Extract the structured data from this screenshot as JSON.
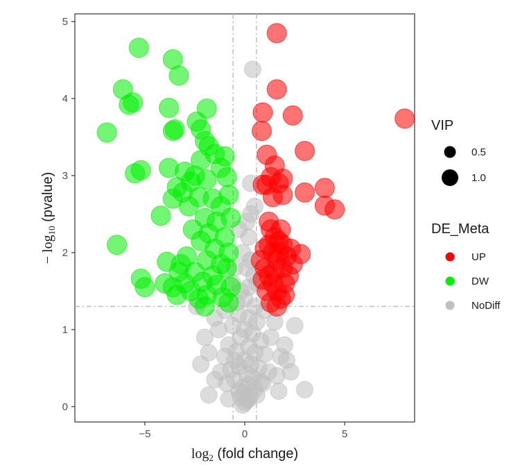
{
  "chart_data": {
    "type": "scatter",
    "title": "",
    "xlabel": {
      "prefix": "log",
      "sub": "2",
      "rest": " (fold change)"
    },
    "ylabel": {
      "prefix": "− log",
      "sub": "10",
      "rest": " (pvalue)"
    },
    "xlim": [
      -8.5,
      8.5
    ],
    "ylim": [
      -0.2,
      5.1
    ],
    "x_ticks": [
      -5,
      0,
      5
    ],
    "x_tick_labels": [
      "−5",
      "0",
      "5"
    ],
    "y_ticks": [
      0,
      1,
      2,
      3,
      4,
      5
    ],
    "y_tick_labels": [
      "0",
      "1",
      "2",
      "3",
      "4",
      "5"
    ],
    "grid": false,
    "reference_lines": {
      "x": [
        -0.585,
        0.585
      ],
      "y": 1.301,
      "style": "dashed",
      "color": "#bdbdbd"
    },
    "legend": {
      "placement": "right",
      "size_title": "VIP",
      "size_entries": [
        {
          "label": "0.5",
          "vip": 0.5
        },
        {
          "label": "1.0",
          "vip": 1.0
        }
      ],
      "color_title": "DE_Meta",
      "color_entries": [
        {
          "label": "UP",
          "color": "#ff0000"
        },
        {
          "label": "DW",
          "color": "#00ee00"
        },
        {
          "label": "NoDiff",
          "color": "#c0c0c0"
        }
      ]
    },
    "series": [
      {
        "name": "UP",
        "color": "#ff0000",
        "points": [
          [
            1.6,
            4.85
          ],
          [
            1.6,
            4.12
          ],
          [
            0.9,
            3.82
          ],
          [
            2.4,
            3.78
          ],
          [
            8,
            3.74
          ],
          [
            0.85,
            3.58
          ],
          [
            3,
            3.32
          ],
          [
            1.1,
            3.27
          ],
          [
            1.5,
            3.13
          ],
          [
            1.3,
            2.98
          ],
          [
            1.9,
            2.96
          ],
          [
            4,
            2.84
          ],
          [
            1.1,
            2.88
          ],
          [
            1.7,
            2.9
          ],
          [
            3,
            2.78
          ],
          [
            4.5,
            2.56
          ],
          [
            1.4,
            2.72
          ],
          [
            1.9,
            2.75
          ],
          [
            4,
            2.61
          ],
          [
            0.9,
            2.88
          ],
          [
            1.2,
            2.4
          ],
          [
            1.3,
            2.3
          ],
          [
            1.5,
            2.2
          ],
          [
            1.7,
            2.15
          ],
          [
            1.9,
            2.1
          ],
          [
            1.8,
            2.3
          ],
          [
            1.4,
            2.0
          ],
          [
            1.6,
            1.9
          ],
          [
            2.1,
            1.95
          ],
          [
            2.3,
            2.05
          ],
          [
            2.8,
            1.98
          ],
          [
            1.0,
            1.8
          ],
          [
            1.2,
            1.7
          ],
          [
            1.4,
            1.6
          ],
          [
            1.6,
            1.5
          ],
          [
            1.8,
            1.4
          ],
          [
            2.0,
            1.6
          ],
          [
            1.5,
            1.75
          ],
          [
            1.1,
            1.5
          ],
          [
            1.3,
            1.35
          ],
          [
            1.9,
            1.8
          ],
          [
            2.2,
            1.7
          ],
          [
            0.8,
            1.9
          ],
          [
            0.9,
            1.65
          ],
          [
            1.6,
            1.3
          ],
          [
            2.0,
            1.45
          ],
          [
            1.7,
            2.0
          ],
          [
            1.2,
            2.1
          ],
          [
            2.4,
            1.85
          ],
          [
            1.0,
            2.05
          ]
        ]
      },
      {
        "name": "DW",
        "color": "#00ee00",
        "points": [
          [
            -5.3,
            4.66
          ],
          [
            -3.6,
            4.51
          ],
          [
            -3.3,
            4.3
          ],
          [
            -6.1,
            4.12
          ],
          [
            -5.6,
            3.95
          ],
          [
            -5.8,
            3.92
          ],
          [
            -3.8,
            3.88
          ],
          [
            -1.9,
            3.87
          ],
          [
            -2.4,
            3.7
          ],
          [
            -3.5,
            3.6
          ],
          [
            -2.2,
            3.6
          ],
          [
            -3.6,
            3.58
          ],
          [
            -6.9,
            3.56
          ],
          [
            -2.0,
            3.45
          ],
          [
            -1.8,
            3.38
          ],
          [
            -1.5,
            3.28
          ],
          [
            -1.0,
            3.25
          ],
          [
            -2.2,
            3.2
          ],
          [
            -1.2,
            3.1
          ],
          [
            -3.8,
            3.1
          ],
          [
            -5.2,
            3.07
          ],
          [
            -5.5,
            3.03
          ],
          [
            -3.0,
            3.05
          ],
          [
            -2.5,
            3.0
          ],
          [
            -0.9,
            2.98
          ],
          [
            -1.9,
            2.95
          ],
          [
            -2.7,
            2.92
          ],
          [
            -3.4,
            2.85
          ],
          [
            -3.1,
            2.78
          ],
          [
            -2.3,
            2.72
          ],
          [
            -1.6,
            2.7
          ],
          [
            -0.8,
            2.75
          ],
          [
            -3.6,
            2.7
          ],
          [
            -2.8,
            2.6
          ],
          [
            -1.2,
            2.6
          ],
          [
            -4.2,
            2.48
          ],
          [
            -2.0,
            2.45
          ],
          [
            -1.4,
            2.4
          ],
          [
            -0.7,
            2.45
          ],
          [
            -2.6,
            2.3
          ],
          [
            -1.8,
            2.25
          ],
          [
            -1.0,
            2.2
          ],
          [
            -2.2,
            2.15
          ],
          [
            -1.5,
            2.05
          ],
          [
            -0.8,
            2.0
          ],
          [
            -6.4,
            2.1
          ],
          [
            -2.9,
            1.95
          ],
          [
            -1.9,
            1.9
          ],
          [
            -1.2,
            1.85
          ],
          [
            -0.9,
            1.8
          ],
          [
            -3.9,
            1.88
          ],
          [
            -3.2,
            1.85
          ],
          [
            -2.5,
            1.75
          ],
          [
            -1.6,
            1.7
          ],
          [
            -2.1,
            1.62
          ],
          [
            -5.2,
            1.66
          ],
          [
            -3.0,
            1.6
          ],
          [
            -1.4,
            1.58
          ],
          [
            -0.7,
            1.55
          ],
          [
            -3.6,
            1.55
          ],
          [
            -5.0,
            1.55
          ],
          [
            -2.7,
            1.5
          ],
          [
            -1.9,
            1.45
          ],
          [
            -1.1,
            1.42
          ],
          [
            -3.4,
            1.45
          ],
          [
            -2.3,
            1.4
          ],
          [
            -0.8,
            1.35
          ],
          [
            -4.0,
            1.6
          ],
          [
            -3.3,
            1.75
          ],
          [
            -2.0,
            1.3
          ]
        ]
      },
      {
        "name": "NoDiff",
        "color": "#c0c0c0",
        "points": [
          [
            0.4,
            4.38
          ],
          [
            0.3,
            2.9
          ],
          [
            0.5,
            2.6
          ],
          [
            0.1,
            2.4
          ],
          [
            0.2,
            2.2
          ],
          [
            -0.1,
            2.0
          ],
          [
            0.3,
            1.9
          ],
          [
            0.45,
            1.7
          ],
          [
            0.2,
            1.55
          ],
          [
            -0.2,
            1.5
          ],
          [
            0.0,
            1.4
          ],
          [
            -0.4,
            1.35
          ],
          [
            0.5,
            1.3
          ],
          [
            -0.3,
            1.2
          ],
          [
            0.2,
            1.15
          ],
          [
            0.6,
            1.1
          ],
          [
            -0.6,
            1.05
          ],
          [
            0.0,
            1.0
          ],
          [
            0.4,
            0.95
          ],
          [
            -0.2,
            0.9
          ],
          [
            0.8,
            0.85
          ],
          [
            -0.8,
            0.8
          ],
          [
            0.2,
            0.78
          ],
          [
            -0.4,
            0.72
          ],
          [
            0.5,
            0.7
          ],
          [
            1.0,
            0.68
          ],
          [
            -1.0,
            0.65
          ],
          [
            0.0,
            0.6
          ],
          [
            0.3,
            0.55
          ],
          [
            -0.3,
            0.52
          ],
          [
            0.7,
            0.5
          ],
          [
            -0.7,
            0.48
          ],
          [
            1.2,
            0.45
          ],
          [
            -1.2,
            0.45
          ],
          [
            0.1,
            0.42
          ],
          [
            0.4,
            0.38
          ],
          [
            -0.5,
            0.35
          ],
          [
            0.8,
            0.32
          ],
          [
            -0.9,
            0.3
          ],
          [
            0.2,
            0.28
          ],
          [
            -0.1,
            0.25
          ],
          [
            0.5,
            0.22
          ],
          [
            -0.3,
            0.2
          ],
          [
            0.0,
            0.18
          ],
          [
            0.3,
            0.15
          ],
          [
            -0.2,
            0.12
          ],
          [
            0.1,
            0.08
          ],
          [
            0.0,
            0.05
          ],
          [
            -0.1,
            0.02
          ],
          [
            0.2,
            0.1
          ],
          [
            1.8,
            0.65
          ],
          [
            -1.8,
            0.7
          ],
          [
            2.1,
            0.6
          ],
          [
            -2.0,
            0.9
          ],
          [
            1.5,
            1.1
          ],
          [
            -1.5,
            1.15
          ],
          [
            2.5,
            1.05
          ],
          [
            -2.2,
            0.55
          ],
          [
            2.0,
            0.8
          ],
          [
            3.0,
            0.22
          ],
          [
            -1.8,
            0.15
          ],
          [
            1.7,
            0.2
          ],
          [
            -0.5,
            1.8
          ],
          [
            0.6,
            1.6
          ],
          [
            -0.6,
            1.6
          ],
          [
            0.3,
            2.5
          ],
          [
            -0.3,
            2.3
          ],
          [
            0.1,
            1.8
          ],
          [
            1.0,
            1.25
          ],
          [
            -1.0,
            1.25
          ],
          [
            1.3,
            0.9
          ],
          [
            -1.3,
            1.0
          ],
          [
            0.9,
            0.3
          ],
          [
            -0.8,
            0.1
          ],
          [
            0.6,
            0.15
          ],
          [
            -0.5,
            0.6
          ],
          [
            1.6,
            0.4
          ],
          [
            -1.5,
            0.35
          ],
          [
            2.3,
            0.45
          ],
          [
            -2.4,
            1.3
          ]
        ]
      }
    ]
  }
}
